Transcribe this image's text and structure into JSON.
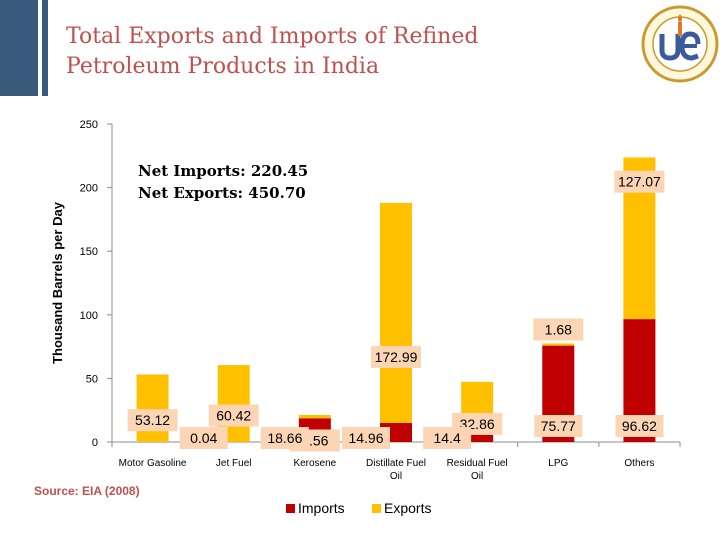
{
  "slide": {
    "title": "Total Exports and Imports of Refined Petroleum Products in India",
    "source": "Source: EIA (2008)",
    "colors": {
      "title": "#c0504d",
      "imports": "#c00000",
      "exports": "#ffc000",
      "label_box": "#fcd5b4",
      "header_bar": "#3a5a7c"
    }
  },
  "chart_data": {
    "type": "bar",
    "stacked": true,
    "title": "",
    "xlabel": "",
    "ylabel": "Thousand Barrels per Day",
    "ylim": [
      0,
      250
    ],
    "yticks": [
      0,
      50,
      100,
      150,
      200,
      250
    ],
    "grid": false,
    "legend_position": "bottom",
    "categories": [
      "Motor Gasoline",
      "Jet Fuel",
      "Kerosene",
      "Distillate Fuel Oil",
      "Residual Fuel Oil",
      "LPG",
      "Others"
    ],
    "category_lines": [
      [
        "Motor Gasoline"
      ],
      [
        "Jet Fuel"
      ],
      [
        "Kerosene"
      ],
      [
        "Distillate Fuel",
        "Oil"
      ],
      [
        "Residual Fuel",
        "Oil"
      ],
      [
        "LPG"
      ],
      [
        "Others"
      ]
    ],
    "series": [
      {
        "name": "Imports",
        "color": "#c00000",
        "values": [
          0,
          0.04,
          18.66,
          14.96,
          14.4,
          75.77,
          96.62
        ],
        "labels": [
          "",
          "0.04",
          "18.66",
          "14.96",
          "14.4",
          "75.77",
          "96.62"
        ]
      },
      {
        "name": "Exports",
        "color": "#ffc000",
        "values": [
          53.12,
          60.42,
          2.56,
          172.99,
          32.86,
          1.68,
          127.07
        ],
        "labels": [
          "53.12",
          "60.42",
          "2.56",
          "172.99",
          "32.86",
          "1.68",
          "127.07"
        ]
      }
    ],
    "annotations": [
      "Net Imports: 220.45",
      "Net Exports:  450.70"
    ]
  }
}
